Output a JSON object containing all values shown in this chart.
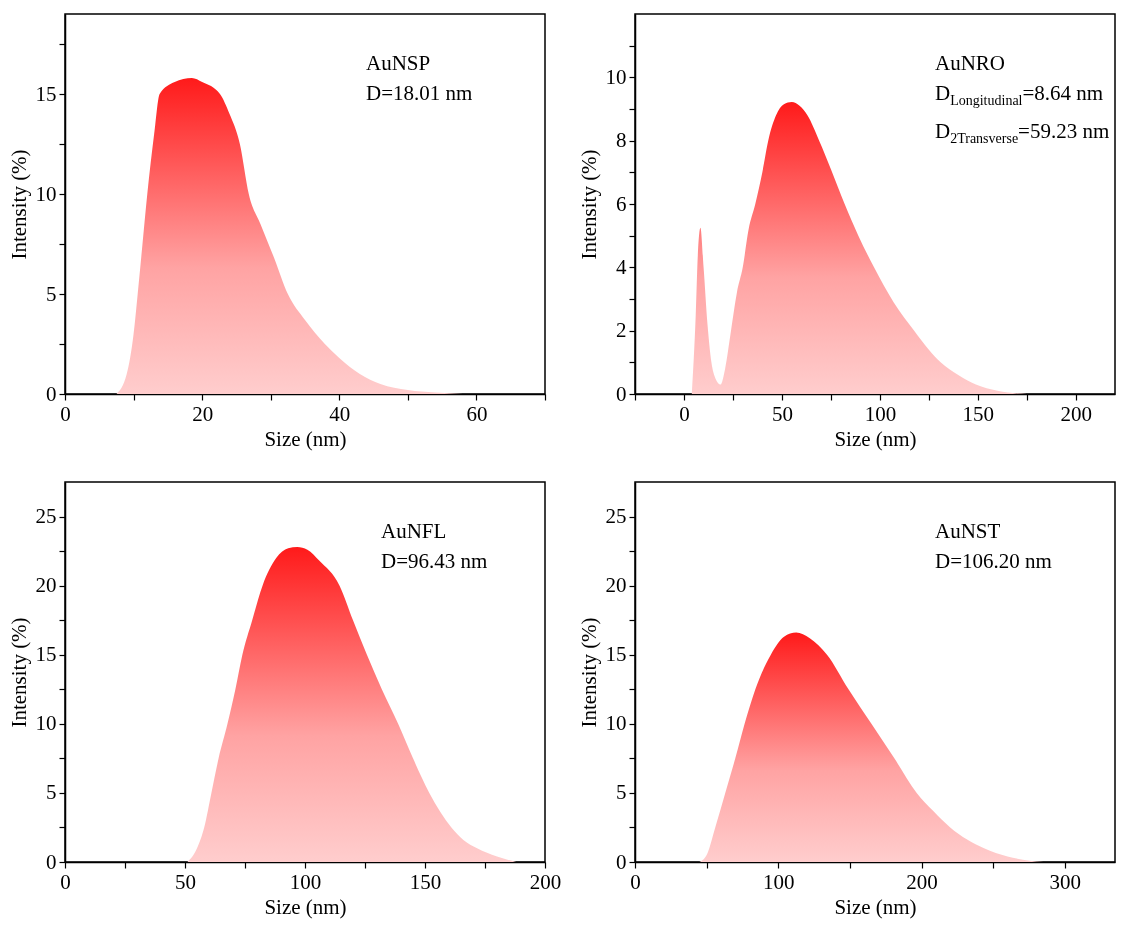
{
  "chart_data": [
    {
      "type": "area",
      "xlabel": "Size (nm)",
      "ylabel": "Intensity (%)",
      "annotations": [
        "AuNSP",
        "D=18.01 nm"
      ],
      "xlim": [
        0,
        70
      ],
      "ylim": [
        0,
        19
      ],
      "xticks": [
        0,
        {
          "value": 10,
          "label": null
        },
        20,
        {
          "value": 30,
          "label": null
        },
        40,
        {
          "value": 50,
          "label": null
        },
        60,
        {
          "value": 70,
          "label": null
        }
      ],
      "yticks": [
        0,
        {
          "value": 2.5,
          "label": null
        },
        5,
        {
          "value": 7.5,
          "label": null
        },
        10,
        {
          "value": 12.5,
          "label": null
        },
        15,
        {
          "value": 17.5,
          "label": null
        }
      ],
      "series": [
        {
          "color": "#ff1a1a",
          "x": [
            7.5,
            9,
            10,
            10.6,
            11.3,
            12,
            13,
            13.8,
            16,
            18.5,
            20,
            22.6,
            24,
            25.5,
            26.8,
            28.5,
            30.5,
            32.5,
            35,
            37.9,
            40,
            43,
            46,
            50,
            54,
            58
          ],
          "values": [
            0,
            1,
            3,
            5,
            7.5,
            10,
            13,
            15,
            15.6,
            15.8,
            15.6,
            15,
            14,
            12.5,
            10,
            8.5,
            6.8,
            5,
            3.7,
            2.5,
            1.8,
            1,
            0.5,
            0.2,
            0.07,
            0
          ]
        }
      ]
    },
    {
      "type": "area",
      "xlabel": "Size (nm)",
      "ylabel": "Intensity (%)",
      "annotations": [
        "AuNRO",
        "D$_{Longitudinal}$=8.64 nm",
        "D$_{2Transverse}$=59.23 nm"
      ],
      "xlim": [
        -25,
        220
      ],
      "ylim": [
        0,
        12
      ],
      "xticks": [
        {
          "value": -25,
          "label": null
        },
        0,
        {
          "value": 25,
          "label": null
        },
        50,
        {
          "value": 75,
          "label": null
        },
        100,
        {
          "value": 125,
          "label": null
        },
        150,
        {
          "value": 175,
          "label": null
        },
        200
      ],
      "yticks": [
        0,
        {
          "value": 1,
          "label": null
        },
        2,
        {
          "value": 3,
          "label": null
        },
        4,
        {
          "value": 5,
          "label": null
        },
        6,
        {
          "value": 7,
          "label": null
        },
        8,
        {
          "value": 9,
          "label": null
        },
        10,
        {
          "value": 11,
          "label": null
        }
      ],
      "series": [
        {
          "color": "#ff1a1a",
          "x": [
            4,
            6,
            7,
            8.4,
            10,
            12,
            14,
            16,
            18.7,
            21,
            24,
            27,
            30,
            33,
            36.4,
            40,
            43,
            47,
            51,
            55,
            59,
            63,
            69,
            75,
            82,
            89,
            97,
            107,
            117.5,
            125,
            131,
            140,
            149,
            160,
            175
          ],
          "values": [
            0,
            2.5,
            4.3,
            5.25,
            4,
            2.2,
            1,
            0.5,
            0.3,
            0.8,
            2,
            3.2,
            4,
            5.2,
            6,
            7,
            8,
            8.8,
            9.15,
            9.22,
            9.1,
            8.8,
            8,
            7.1,
            6,
            5,
            4,
            2.9,
            2,
            1.4,
            1,
            0.6,
            0.3,
            0.1,
            0
          ]
        }
      ]
    },
    {
      "type": "area",
      "xlabel": "Size (nm)",
      "ylabel": "Intensity (%)",
      "annotations": [
        "AuNFL",
        "D=96.43 nm"
      ],
      "xlim": [
        0,
        200
      ],
      "ylim": [
        0,
        27.5
      ],
      "xticks": [
        0,
        {
          "value": 25,
          "label": null
        },
        50,
        {
          "value": 75,
          "label": null
        },
        100,
        {
          "value": 125,
          "label": null
        },
        150,
        {
          "value": 175,
          "label": null
        },
        200
      ],
      "yticks": [
        0,
        {
          "value": 2.5,
          "label": null
        },
        5,
        {
          "value": 7.5,
          "label": null
        },
        10,
        {
          "value": 12.5,
          "label": null
        },
        15,
        {
          "value": 17.5,
          "label": null
        },
        20,
        {
          "value": 22.5,
          "label": null
        },
        25
      ],
      "series": [
        {
          "color": "#ff1a1a",
          "x": [
            51,
            55,
            58,
            61,
            64,
            67.7,
            71,
            73.9,
            78,
            82.3,
            88,
            93,
            96.8,
            101,
            106,
            114.4,
            120,
            125.8,
            132,
            138.8,
            145,
            151.8,
            161,
            166,
            171.7,
            180,
            188
          ],
          "values": [
            0,
            1,
            2.5,
            5,
            7.5,
            10,
            12.5,
            15,
            17.5,
            20,
            22,
            22.7,
            22.8,
            22.6,
            21.8,
            20,
            17.5,
            15,
            12.5,
            10,
            7.5,
            5,
            2.5,
            1.6,
            1,
            0.4,
            0
          ]
        }
      ]
    },
    {
      "type": "area",
      "xlabel": "Size (nm)",
      "ylabel": "Intensity (%)",
      "annotations": [
        "AuNST",
        "D=106.20 nm"
      ],
      "xlim": [
        0,
        335
      ],
      "ylim": [
        0,
        27.5
      ],
      "xticks": [
        0,
        {
          "value": 50,
          "label": null
        },
        100,
        {
          "value": 150,
          "label": null
        },
        200,
        {
          "value": 250,
          "label": null
        },
        300
      ],
      "yticks": [
        0,
        {
          "value": 2.5,
          "label": null
        },
        5,
        {
          "value": 7.5,
          "label": null
        },
        10,
        {
          "value": 12.5,
          "label": null
        },
        15,
        {
          "value": 17.5,
          "label": null
        },
        20,
        {
          "value": 22.5,
          "label": null
        },
        25
      ],
      "series": [
        {
          "color": "#ff1a1a",
          "x": [
            45,
            50,
            56,
            63,
            70,
            76.5,
            84,
            94.8,
            104,
            112.5,
            122,
            134,
            149,
            165,
            181,
            196.6,
            208,
            220,
            243.6,
            260,
            285
          ],
          "values": [
            0,
            0.5,
            2.5,
            5,
            7.5,
            10,
            12.5,
            15,
            16.3,
            16.6,
            16.2,
            15,
            12.5,
            10,
            7.5,
            5,
            3.7,
            2.5,
            1,
            0.4,
            0
          ]
        }
      ]
    }
  ]
}
